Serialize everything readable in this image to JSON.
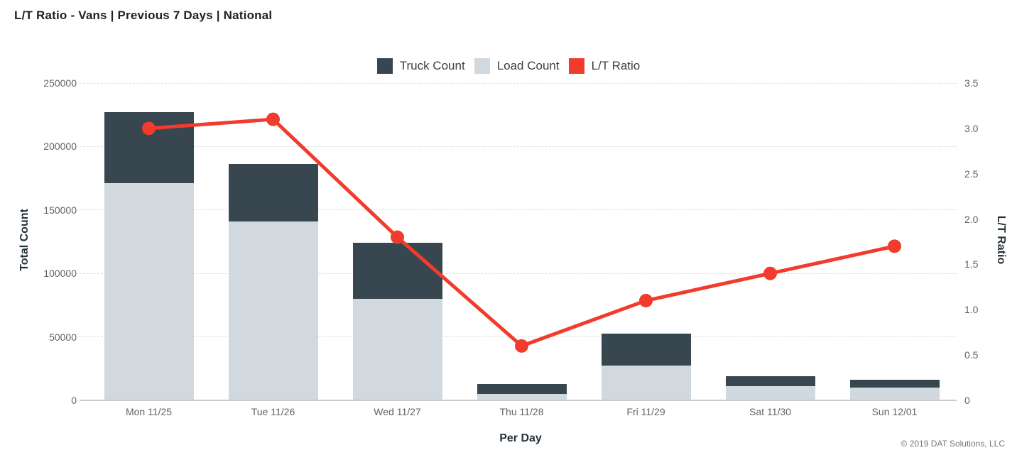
{
  "title": "L/T Ratio - Vans | Previous 7 Days | National",
  "legend": {
    "items": [
      {
        "id": "truck-count",
        "label": "Truck Count",
        "color": "#37464f"
      },
      {
        "id": "load-count",
        "label": "Load Count",
        "color": "#d2d9de"
      },
      {
        "id": "lt-ratio",
        "label": "L/T Ratio",
        "color": "#f13b2d"
      }
    ]
  },
  "axes": {
    "left": {
      "title": "Total Count",
      "max": 250000,
      "ticks": [
        0,
        50000,
        100000,
        150000,
        200000,
        250000
      ]
    },
    "right": {
      "title": "L/T Ratio",
      "max": 3.5,
      "ticks": [
        "0",
        "0.5",
        "1.0",
        "1.5",
        "2.0",
        "2.5",
        "3.0",
        "3.5"
      ]
    },
    "x": {
      "title": "Per Day"
    }
  },
  "copyright": "© 2019 DAT Solutions, LLC",
  "chart_data": {
    "type": "combo: stacked bar + line (dual axis)",
    "title": "L/T Ratio - Vans | Previous 7 Days | National",
    "categories": [
      "Mon 11/25",
      "Tue 11/26",
      "Wed 11/27",
      "Thu 11/28",
      "Fri 11/29",
      "Sat 11/30",
      "Sun 12/01"
    ],
    "series": [
      {
        "name": "Load Count",
        "type": "bar",
        "stack_order": "bottom",
        "axis": "left",
        "color": "#d2d9de",
        "values": [
          171000,
          141000,
          80000,
          5000,
          27500,
          11000,
          10000
        ]
      },
      {
        "name": "Truck Count",
        "type": "bar",
        "stack_order": "top",
        "axis": "left",
        "color": "#37464f",
        "values": [
          56000,
          45000,
          44000,
          8000,
          25000,
          8000,
          6000
        ]
      },
      {
        "name": "L/T Ratio",
        "type": "line",
        "marker": "circle",
        "axis": "right",
        "color": "#f13b2d",
        "values": [
          3.0,
          3.1,
          1.8,
          0.6,
          1.1,
          1.4,
          1.7
        ]
      }
    ],
    "stacked_totals": [
      227000,
      186000,
      124000,
      13000,
      52500,
      19000,
      16000
    ],
    "xlabel": "Per Day",
    "ylabel_left": "Total Count",
    "ylabel_right": "L/T Ratio",
    "left_ylim": [
      0,
      250000
    ],
    "right_ylim": [
      0,
      3.5
    ],
    "grid": "horizontal dashed lines at left-axis ticks",
    "legend_position": "top-center"
  }
}
